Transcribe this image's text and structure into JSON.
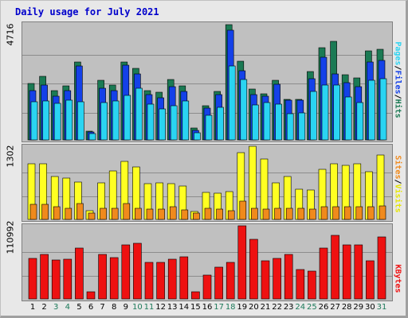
{
  "title": "Daily usage for July 2021",
  "colors": {
    "hits": "#1b7a54",
    "files": "#1441e8",
    "pages": "#2ad4f2",
    "visits": "#ffff22",
    "sites": "#f08a1c",
    "kbytes": "#ee1111",
    "weekday_label": "#000000",
    "weekend_label": "#1d7a5a"
  },
  "panels": {
    "top": {
      "max_label": "4716",
      "legend": [
        "Pages",
        "Files",
        "Hits"
      ]
    },
    "middle": {
      "max_label": "1302",
      "legend": [
        "Sites",
        "Visits"
      ]
    },
    "bottom": {
      "max_label": "110992",
      "legend": [
        "KBytes"
      ]
    }
  },
  "chart_data": [
    {
      "type": "bar",
      "title": "Daily usage for July 2021",
      "categories": [
        "1",
        "2",
        "3",
        "4",
        "5",
        "6",
        "7",
        "8",
        "9",
        "10",
        "11",
        "12",
        "13",
        "14",
        "15",
        "16",
        "17",
        "18",
        "19",
        "20",
        "21",
        "22",
        "23",
        "24",
        "25",
        "26",
        "27",
        "28",
        "29",
        "30",
        "31"
      ],
      "weekend_days": [
        "3",
        "4",
        "10",
        "11",
        "17",
        "18",
        "24",
        "25",
        "31"
      ],
      "ylim": [
        0,
        4716
      ],
      "series": [
        {
          "name": "Hits",
          "values": [
            2300,
            2570,
            2010,
            2190,
            3180,
            370,
            2430,
            2220,
            3170,
            2920,
            2010,
            1940,
            2440,
            2200,
            470,
            1400,
            1960,
            4670,
            3200,
            2060,
            1880,
            2410,
            1660,
            1660,
            2780,
            3760,
            4020,
            2660,
            2520,
            3610,
            3680
          ]
        },
        {
          "name": "Files",
          "values": [
            2000,
            2220,
            1790,
            2010,
            2990,
            310,
            2090,
            2000,
            3040,
            2690,
            1830,
            1720,
            2160,
            1980,
            400,
            1300,
            1840,
            4450,
            2820,
            1850,
            1780,
            2250,
            1600,
            1600,
            2480,
            3360,
            2680,
            2320,
            2150,
            3180,
            3220
          ]
        },
        {
          "name": "Pages",
          "values": [
            1550,
            1580,
            1470,
            1600,
            1550,
            250,
            1520,
            1570,
            1820,
            2090,
            1440,
            1270,
            1380,
            1590,
            300,
            1010,
            1310,
            3020,
            2470,
            1420,
            1510,
            1460,
            1050,
            1100,
            1960,
            2240,
            2220,
            1740,
            1510,
            2410,
            2480
          ]
        }
      ]
    },
    {
      "type": "bar",
      "categories": [
        "1",
        "2",
        "3",
        "4",
        "5",
        "6",
        "7",
        "8",
        "9",
        "10",
        "11",
        "12",
        "13",
        "14",
        "15",
        "16",
        "17",
        "18",
        "19",
        "20",
        "21",
        "22",
        "23",
        "24",
        "25",
        "26",
        "27",
        "28",
        "29",
        "30",
        "31"
      ],
      "ylim": [
        0,
        1302
      ],
      "series": [
        {
          "name": "Visits",
          "values": [
            990,
            990,
            770,
            740,
            670,
            160,
            650,
            860,
            1030,
            930,
            640,
            650,
            640,
            590,
            140,
            480,
            470,
            490,
            1190,
            1300,
            1070,
            650,
            760,
            540,
            530,
            890,
            990,
            960,
            990,
            850,
            1150
          ]
        },
        {
          "name": "Sites",
          "values": [
            270,
            270,
            230,
            200,
            290,
            120,
            200,
            200,
            280,
            200,
            180,
            190,
            220,
            170,
            110,
            200,
            190,
            160,
            330,
            200,
            190,
            200,
            200,
            200,
            180,
            220,
            220,
            220,
            220,
            230,
            240
          ]
        }
      ]
    },
    {
      "type": "bar",
      "categories": [
        "1",
        "2",
        "3",
        "4",
        "5",
        "6",
        "7",
        "8",
        "9",
        "10",
        "11",
        "12",
        "13",
        "14",
        "15",
        "16",
        "17",
        "18",
        "19",
        "20",
        "21",
        "22",
        "23",
        "24",
        "25",
        "26",
        "27",
        "28",
        "29",
        "30",
        "31"
      ],
      "ylim": [
        0,
        110992
      ],
      "series": [
        {
          "name": "KBytes",
          "values": [
            62000,
            68000,
            59000,
            60000,
            77000,
            11000,
            67000,
            63000,
            82000,
            84000,
            56000,
            56000,
            60000,
            64000,
            11000,
            36000,
            48000,
            55000,
            110500,
            90000,
            58000,
            62000,
            67000,
            45000,
            42000,
            77000,
            96000,
            82000,
            82000,
            58000,
            94000
          ]
        }
      ]
    }
  ]
}
